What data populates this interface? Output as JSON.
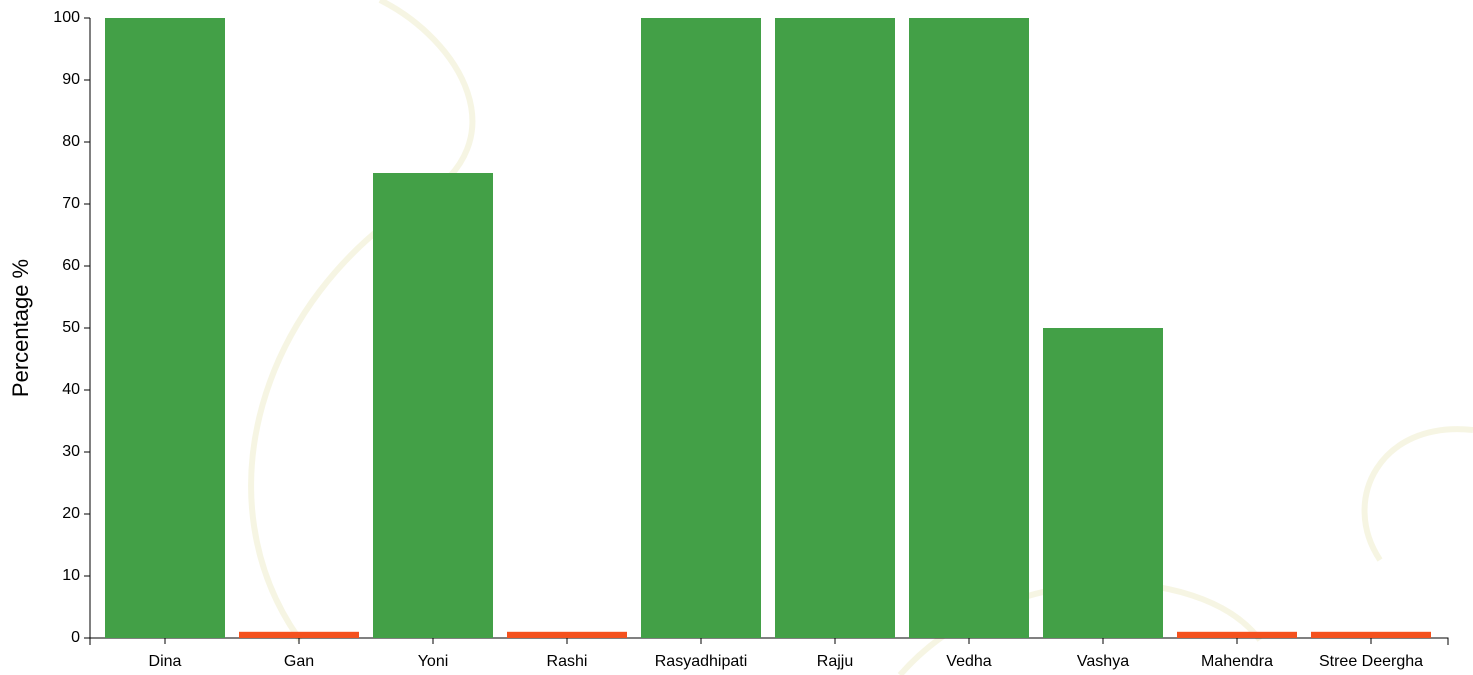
{
  "chart_data": {
    "type": "bar",
    "y_label": "Percentage %",
    "categories": [
      "Dina",
      "Gan",
      "Yoni",
      "Rashi",
      "Rasyadhipati",
      "Rajju",
      "Vedha",
      "Vashya",
      "Mahendra",
      "Stree Deergha"
    ],
    "values": [
      100,
      1,
      75,
      1,
      100,
      100,
      100,
      50,
      1,
      1
    ],
    "colors": [
      "#43a047",
      "#f4511e",
      "#43a047",
      "#f4511e",
      "#43a047",
      "#43a047",
      "#43a047",
      "#43a047",
      "#f4511e",
      "#f4511e"
    ],
    "ylim": [
      0,
      100
    ],
    "yticks": [
      0,
      10,
      20,
      30,
      40,
      50,
      60,
      70,
      80,
      90,
      100
    ],
    "grid": false
  }
}
